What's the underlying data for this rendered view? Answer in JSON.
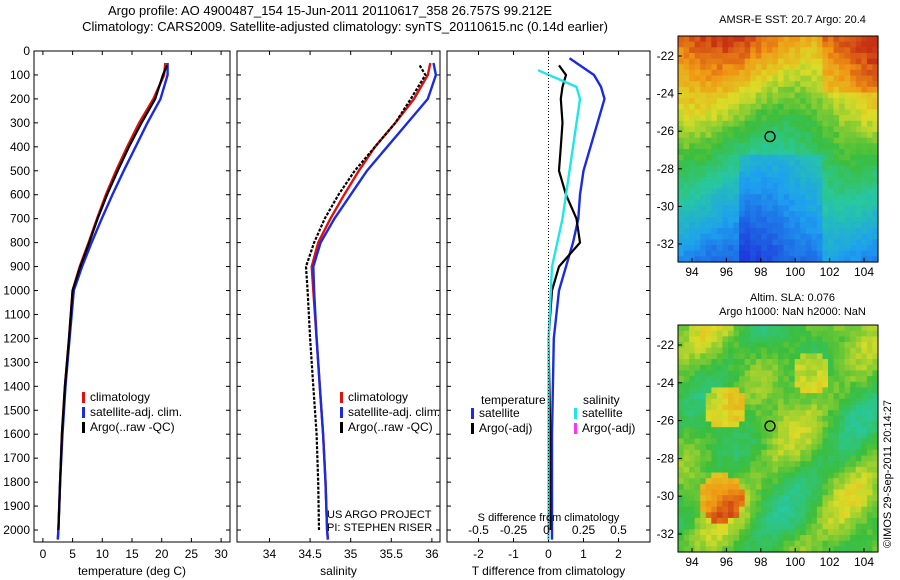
{
  "header": {
    "line1": "Argo profile: AO 4900487_154 15-Jun-2011 20110617_358 26.757S 99.212E",
    "line2": "Climatology: CARS2009. Satellite-adjusted climatology: synTS_20110615.nc (0.14d earlier)"
  },
  "colors": {
    "climatology": "#e01010",
    "satellite": "#1a2be0",
    "argo": "#000000",
    "cyan": "#22e6e6",
    "magenta": "#ff33ff"
  },
  "chart_data": [
    {
      "type": "line",
      "name": "temperature-profile",
      "xlabel": "temperature (deg C)",
      "ylabel": "",
      "xlim": [
        -1.5,
        31.5
      ],
      "ylim": [
        2050,
        0
      ],
      "xticks": [
        0,
        5,
        10,
        15,
        20,
        25,
        30
      ],
      "yticks": [
        0,
        100,
        200,
        300,
        400,
        500,
        600,
        700,
        800,
        900,
        1000,
        1100,
        1200,
        1300,
        1400,
        1500,
        1600,
        1700,
        1800,
        1900,
        2000
      ],
      "legend": [
        "climatology",
        "satellite-adj. clim.",
        "Argo(..raw -QC)"
      ],
      "series": [
        {
          "name": "climatology",
          "color": "#e01010",
          "points": [
            [
              20.6,
              50
            ],
            [
              20.4,
              100
            ],
            [
              18.6,
              200
            ],
            [
              16.2,
              300
            ],
            [
              14.2,
              400
            ],
            [
              12.3,
              500
            ],
            [
              10.6,
              600
            ],
            [
              9.1,
              700
            ],
            [
              7.7,
              800
            ],
            [
              6.2,
              900
            ],
            [
              5.0,
              1000
            ],
            [
              4.4,
              1200
            ],
            [
              3.7,
              1400
            ],
            [
              3.2,
              1600
            ],
            [
              2.9,
              1800
            ],
            [
              2.6,
              2000
            ],
            [
              2.5,
              2040
            ]
          ]
        },
        {
          "name": "satellite-adj. clim.",
          "color": "#1a2be0",
          "points": [
            [
              21.0,
              50
            ],
            [
              21.0,
              100
            ],
            [
              19.8,
              200
            ],
            [
              17.6,
              300
            ],
            [
              15.6,
              400
            ],
            [
              13.6,
              500
            ],
            [
              11.7,
              600
            ],
            [
              9.9,
              700
            ],
            [
              8.2,
              800
            ],
            [
              6.6,
              900
            ],
            [
              5.2,
              1000
            ],
            [
              4.5,
              1200
            ],
            [
              3.8,
              1400
            ],
            [
              3.3,
              1600
            ],
            [
              2.9,
              1800
            ],
            [
              2.6,
              2000
            ],
            [
              2.5,
              2040
            ]
          ]
        },
        {
          "name": "Argo(..raw -QC)",
          "color": "#000000",
          "points": [
            [
              20.9,
              60
            ],
            [
              20.2,
              100
            ],
            [
              18.9,
              200
            ],
            [
              16.6,
              300
            ],
            [
              14.5,
              400
            ],
            [
              12.6,
              500
            ],
            [
              10.8,
              600
            ],
            [
              9.2,
              700
            ],
            [
              7.8,
              800
            ],
            [
              6.3,
              900
            ],
            [
              5.0,
              1000
            ],
            [
              4.4,
              1200
            ],
            [
              3.7,
              1400
            ],
            [
              3.2,
              1600
            ],
            [
              2.9,
              1800
            ],
            [
              2.6,
              2000
            ]
          ]
        }
      ]
    },
    {
      "type": "line",
      "name": "salinity-profile",
      "xlabel": "salinity",
      "ylabel": "",
      "xlim": [
        33.6,
        36.1
      ],
      "ylim": [
        2050,
        0
      ],
      "xticks": [
        34,
        34.5,
        35,
        35.5,
        36
      ],
      "xticklabels": [
        "34",
        "34.5",
        "35",
        "35.5",
        "36"
      ],
      "legend": [
        "climatology",
        "satellite-adj. clim.",
        "Argo(..raw -QC)"
      ],
      "annotation": [
        "US ARGO PROJECT",
        "PI: STEPHEN RISER"
      ],
      "series": [
        {
          "name": "climatology",
          "color": "#e01010",
          "points": [
            [
              35.98,
              50
            ],
            [
              35.95,
              100
            ],
            [
              35.78,
              200
            ],
            [
              35.55,
              300
            ],
            [
              35.3,
              400
            ],
            [
              35.1,
              500
            ],
            [
              34.92,
              600
            ],
            [
              34.75,
              700
            ],
            [
              34.6,
              800
            ],
            [
              34.52,
              900
            ],
            [
              34.54,
              1000
            ],
            [
              34.58,
              1200
            ],
            [
              34.62,
              1400
            ],
            [
              34.66,
              1600
            ],
            [
              34.69,
              1800
            ],
            [
              34.71,
              2000
            ],
            [
              34.72,
              2040
            ]
          ]
        },
        {
          "name": "satellite-adj. clim.",
          "color": "#1a2be0",
          "points": [
            [
              36.02,
              50
            ],
            [
              36.05,
              100
            ],
            [
              35.95,
              200
            ],
            [
              35.7,
              300
            ],
            [
              35.45,
              400
            ],
            [
              35.2,
              500
            ],
            [
              35.0,
              600
            ],
            [
              34.8,
              700
            ],
            [
              34.63,
              800
            ],
            [
              34.54,
              900
            ],
            [
              34.55,
              1000
            ],
            [
              34.58,
              1200
            ],
            [
              34.62,
              1400
            ],
            [
              34.66,
              1600
            ],
            [
              34.69,
              1800
            ],
            [
              34.71,
              2000
            ],
            [
              34.72,
              2040
            ]
          ]
        },
        {
          "name": "Argo(..raw -QC)",
          "color": "#000000",
          "points": [
            [
              35.85,
              60
            ],
            [
              35.92,
              100
            ],
            [
              35.74,
              200
            ],
            [
              35.55,
              300
            ],
            [
              35.3,
              400
            ],
            [
              35.05,
              500
            ],
            [
              34.85,
              600
            ],
            [
              34.68,
              700
            ],
            [
              34.55,
              800
            ],
            [
              34.45,
              900
            ],
            [
              34.47,
              1000
            ],
            [
              34.5,
              1200
            ],
            [
              34.54,
              1400
            ],
            [
              34.58,
              1600
            ],
            [
              34.6,
              1800
            ],
            [
              34.61,
              2000
            ]
          ]
        }
      ]
    },
    {
      "type": "line",
      "name": "difference-profile",
      "xlabel": "T difference from climatology",
      "xlabel_top": "S difference from climatology",
      "xlim": [
        -2.9,
        2.9
      ],
      "ylim": [
        2050,
        0
      ],
      "xticks": [
        -2,
        -1,
        0,
        1,
        2
      ],
      "xticks_top": [
        "-0.5",
        "-0.25",
        "0",
        "0.25",
        "0.5"
      ],
      "legend_left_title": "temperature",
      "legend_right_title": "salinity",
      "legend": [
        "satellite",
        "Argo(-adj)",
        "satellite",
        "Argo(-adj)"
      ],
      "series": [
        {
          "name": "T satellite",
          "color": "#1a2be0",
          "points": [
            [
              0.6,
              30
            ],
            [
              1.3,
              100
            ],
            [
              1.5,
              150
            ],
            [
              1.6,
              200
            ],
            [
              1.4,
              300
            ],
            [
              1.2,
              400
            ],
            [
              1.0,
              500
            ],
            [
              0.9,
              600
            ],
            [
              0.85,
              700
            ],
            [
              0.7,
              800
            ],
            [
              0.5,
              900
            ],
            [
              0.3,
              1000
            ],
            [
              0.15,
              1200
            ],
            [
              0.1,
              1600
            ],
            [
              0.1,
              2040
            ]
          ]
        },
        {
          "name": "T Argo(-adj)",
          "color": "#000000",
          "points": [
            [
              0.3,
              60
            ],
            [
              0.5,
              100
            ],
            [
              0.4,
              150
            ],
            [
              0.35,
              200
            ],
            [
              0.4,
              300
            ],
            [
              0.35,
              400
            ],
            [
              0.3,
              500
            ],
            [
              0.5,
              600
            ],
            [
              0.8,
              700
            ],
            [
              0.9,
              800
            ],
            [
              0.3,
              900
            ],
            [
              0.1,
              1000
            ],
            [
              0.0,
              1200
            ],
            [
              0.05,
              1600
            ],
            [
              0.05,
              2000
            ]
          ]
        },
        {
          "name": "S satellite",
          "color": "#22e6e6",
          "points": [
            [
              -0.3,
              80
            ],
            [
              0.8,
              150
            ],
            [
              0.9,
              200
            ],
            [
              0.8,
              300
            ],
            [
              0.6,
              500
            ],
            [
              0.4,
              700
            ],
            [
              0.1,
              900
            ],
            [
              0.0,
              1200
            ],
            [
              0.0,
              2040
            ]
          ]
        },
        {
          "name": "S Argo(-adj)",
          "color": "#ff33ff",
          "points": []
        }
      ]
    }
  ],
  "maps": {
    "top": {
      "title": "AMSR-E SST: 20.7 Argo: 20.4",
      "xticks": [
        "94",
        "96",
        "98",
        "100",
        "102",
        "104"
      ],
      "yticks": [
        "-22",
        "-24",
        "-26",
        "-28",
        "-30",
        "-32"
      ]
    },
    "bottom": {
      "title1": "Altim. SLA: 0.076",
      "title2": "Argo h1000: NaN h2000: NaN",
      "xticks": [
        "94",
        "96",
        "98",
        "100",
        "102",
        "104"
      ],
      "yticks": [
        "-22",
        "-24",
        "-26",
        "-28",
        "-30",
        "-32"
      ]
    }
  },
  "stamp": "©IMOS 29-Sep-2011 20:14:27"
}
